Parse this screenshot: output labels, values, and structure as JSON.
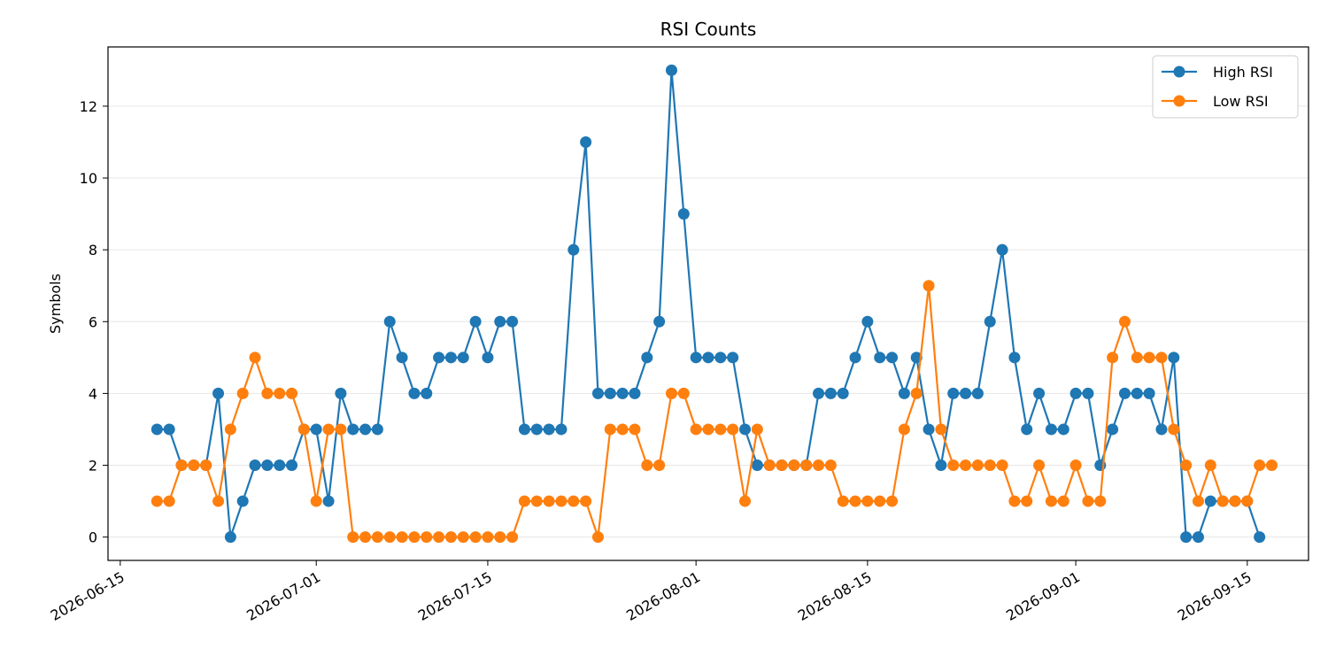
{
  "chart_data": {
    "type": "line",
    "title": "RSI Counts",
    "xlabel": "",
    "ylabel": "Symbols",
    "x_start": "2026-06-18",
    "x_step_days": 1,
    "x_range": [
      "2026-06-14",
      "2026-09-20"
    ],
    "ylim": [
      -0.65,
      13.65
    ],
    "x_ticks": [
      "2026-06-15",
      "2026-07-01",
      "2026-07-15",
      "2026-08-01",
      "2026-08-15",
      "2026-09-01",
      "2026-09-15"
    ],
    "y_ticks": [
      0,
      2,
      4,
      6,
      8,
      10,
      12
    ],
    "grid": "horizontal",
    "legend_position": "top-right",
    "series": [
      {
        "name": "High RSI",
        "color": "#1f77b4",
        "values": [
          3,
          3,
          2,
          2,
          2,
          4,
          0,
          1,
          2,
          2,
          2,
          2,
          3,
          3,
          1,
          4,
          3,
          3,
          3,
          6,
          5,
          4,
          4,
          5,
          5,
          5,
          6,
          5,
          6,
          6,
          3,
          3,
          3,
          3,
          8,
          11,
          4,
          4,
          4,
          4,
          5,
          6,
          13,
          9,
          5,
          5,
          5,
          5,
          3,
          2,
          2,
          2,
          2,
          2,
          4,
          4,
          4,
          5,
          6,
          5,
          5,
          4,
          5,
          3,
          2,
          4,
          4,
          4,
          6,
          8,
          5,
          3,
          4,
          3,
          3,
          4,
          4,
          2,
          3,
          4,
          4,
          4,
          3,
          5,
          0,
          0,
          1,
          1,
          1,
          1,
          0
        ]
      },
      {
        "name": "Low RSI",
        "color": "#ff7f0e",
        "values": [
          1,
          1,
          2,
          2,
          2,
          1,
          3,
          4,
          5,
          4,
          4,
          4,
          3,
          1,
          3,
          3,
          0,
          0,
          0,
          0,
          0,
          0,
          0,
          0,
          0,
          0,
          0,
          0,
          0,
          0,
          1,
          1,
          1,
          1,
          1,
          1,
          0,
          3,
          3,
          3,
          2,
          2,
          4,
          4,
          3,
          3,
          3,
          3,
          1,
          3,
          2,
          2,
          2,
          2,
          2,
          2,
          1,
          1,
          1,
          1,
          1,
          3,
          4,
          7,
          3,
          2,
          2,
          2,
          2,
          2,
          1,
          1,
          2,
          1,
          1,
          2,
          1,
          1,
          5,
          6,
          5,
          5,
          5,
          3,
          2,
          1,
          2,
          1,
          1,
          1,
          2,
          2
        ]
      }
    ]
  }
}
